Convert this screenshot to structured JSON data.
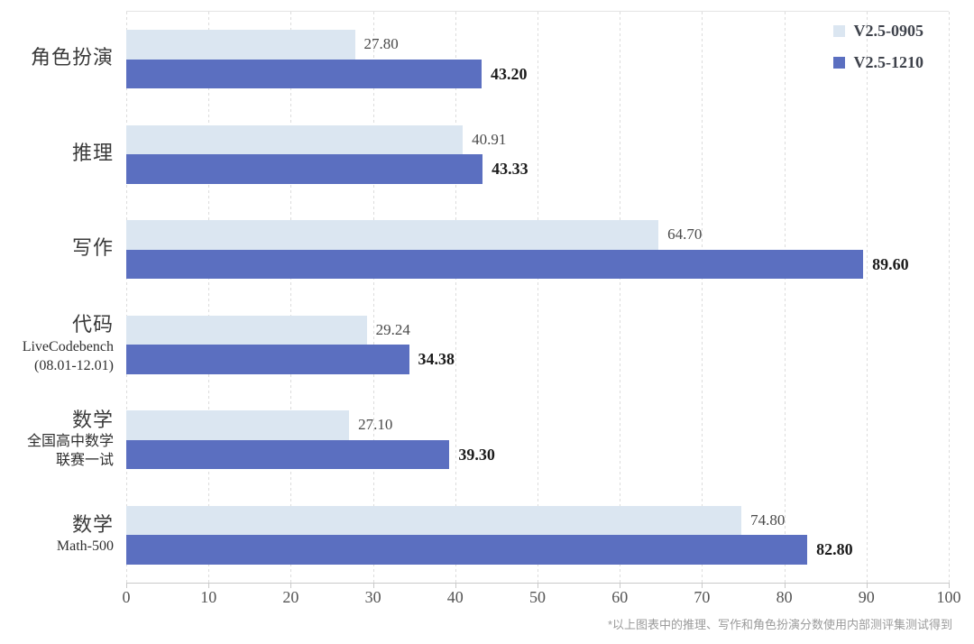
{
  "chart_data": {
    "type": "bar",
    "orientation": "horizontal",
    "title": "",
    "xlabel": "",
    "ylabel": "",
    "xlim": [
      0,
      100
    ],
    "x_ticks": [
      0,
      10,
      20,
      30,
      40,
      50,
      60,
      70,
      80,
      90,
      100
    ],
    "grid": true,
    "legend_position": "top-right",
    "categories": [
      {
        "label": "角色扮演",
        "sublines": []
      },
      {
        "label": "推理",
        "sublines": []
      },
      {
        "label": "写作",
        "sublines": []
      },
      {
        "label": "代码",
        "sublines": [
          "LiveCodebench",
          "(08.01-12.01)"
        ]
      },
      {
        "label": "数学",
        "sublines": [
          "全国高中数学",
          "联赛一试"
        ]
      },
      {
        "label": "数学",
        "sublines": [
          "Math-500"
        ]
      }
    ],
    "series": [
      {
        "name": "V2.5-0905",
        "color": "#dbe6f1",
        "values": [
          27.8,
          40.91,
          64.7,
          29.24,
          27.1,
          74.8
        ]
      },
      {
        "name": "V2.5-1210",
        "color": "#5b6fc0",
        "values": [
          43.2,
          43.33,
          89.6,
          34.38,
          39.3,
          82.8
        ]
      }
    ]
  },
  "legend": {
    "items": [
      {
        "label": "V2.5-0905"
      },
      {
        "label": "V2.5-1210"
      }
    ]
  },
  "footnote": "*以上图表中的推理、写作和角色扮演分数使用内部测评集测试得到"
}
